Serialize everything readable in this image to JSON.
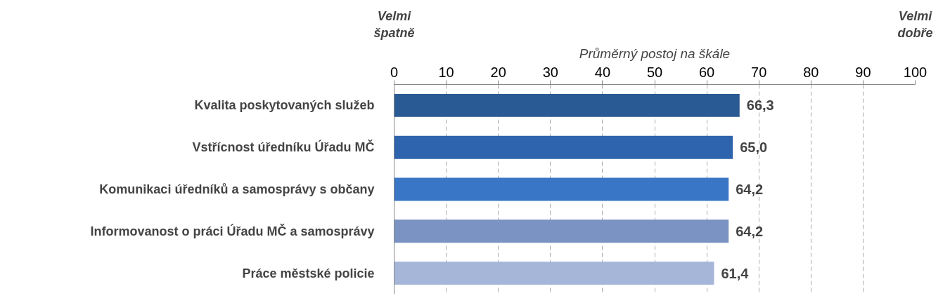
{
  "chart_data": {
    "type": "bar",
    "orientation": "horizontal",
    "xlabel": "Průměrný postoj na škále",
    "annotations": [
      "Velmi\nšpatně",
      "Velmi\ndobře"
    ],
    "categories": [
      "Kvalita poskytovaných služeb",
      "Vstřícnost úředníku Úřadu MČ",
      "Komunikaci úředníků a samosprávy s občany",
      "Informovanost o práci Úřadu MČ a samosprávy",
      "Práce městské policie"
    ],
    "values": [
      66.3,
      65.0,
      64.2,
      64.2,
      61.4
    ],
    "value_labels": [
      "66,3",
      "65,0",
      "64,2",
      "64,2",
      "61,4"
    ],
    "colors": [
      "#2a5a94",
      "#2e63ae",
      "#3a76c6",
      "#7a93c2",
      "#a6b6d8"
    ],
    "xlim": [
      0,
      100
    ],
    "xticks": [
      0,
      10,
      20,
      30,
      40,
      50,
      60,
      70,
      80,
      90,
      100
    ],
    "grid": "x"
  }
}
